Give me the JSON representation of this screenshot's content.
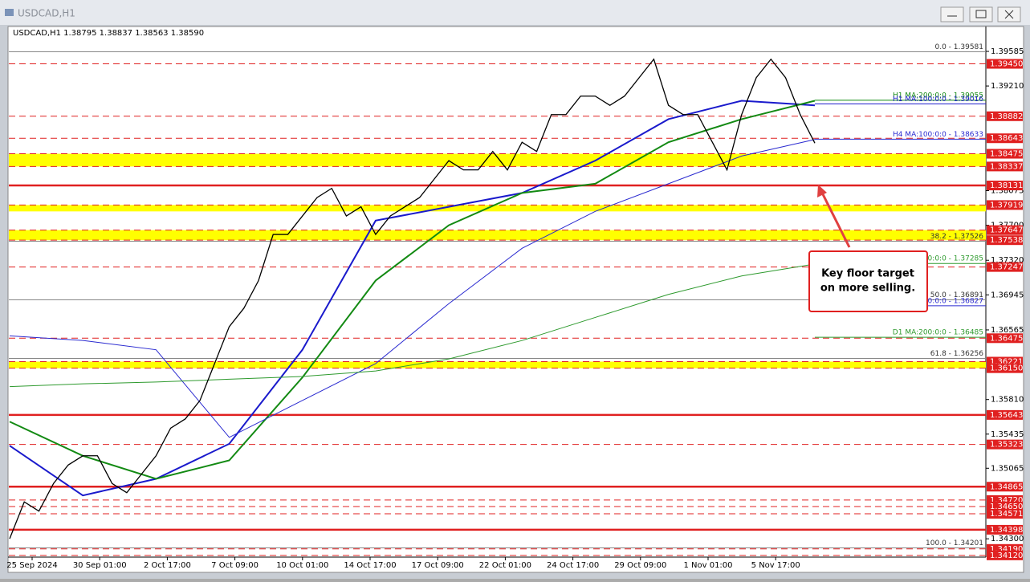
{
  "window": {
    "title": "USDCAD,H1"
  },
  "chart": {
    "info": "USDCAD,H1  1.38795 1.38837 1.38563 1.38590",
    "ylim": [
      1.3411,
      1.39855
    ],
    "yticks": [
      {
        "value": 1.39585,
        "label": "1.39585"
      },
      {
        "value": 1.3921,
        "label": "1.39210"
      },
      {
        "value": 1.38075,
        "label": "1.38075"
      },
      {
        "value": 1.377,
        "label": "1.37700"
      },
      {
        "value": 1.3732,
        "label": "1.37320"
      },
      {
        "value": 1.36945,
        "label": "1.36945"
      },
      {
        "value": 1.36565,
        "label": "1.36565"
      },
      {
        "value": 1.3581,
        "label": "1.35810"
      },
      {
        "value": 1.35435,
        "label": "1.35435"
      },
      {
        "value": 1.35065,
        "label": "1.35065"
      },
      {
        "value": 1.343,
        "label": "1.34300"
      }
    ],
    "xlabels": [
      "25 Sep 2024",
      "30 Sep 01:00",
      "2 Oct 17:00",
      "7 Oct 09:00",
      "10 Oct 01:00",
      "14 Oct 17:00",
      "17 Oct 09:00",
      "22 Oct 01:00",
      "24 Oct 17:00",
      "29 Oct 09:00",
      "1 Nov 01:00",
      "5 Nov 17:00"
    ],
    "price": {
      "color": "#000000",
      "values": [
        1.343,
        1.347,
        1.346,
        1.349,
        1.351,
        1.352,
        1.352,
        1.349,
        1.348,
        1.35,
        1.352,
        1.355,
        1.356,
        1.358,
        1.362,
        1.366,
        1.368,
        1.371,
        1.376,
        1.376,
        1.378,
        1.38,
        1.381,
        1.378,
        1.379,
        1.376,
        1.378,
        1.379,
        1.38,
        1.382,
        1.384,
        1.383,
        1.383,
        1.385,
        1.383,
        1.386,
        1.385,
        1.389,
        1.389,
        1.391,
        1.391,
        1.39,
        1.391,
        1.393,
        1.395,
        1.39,
        1.389,
        1.389,
        1.386,
        1.383,
        1.389,
        1.393,
        1.395,
        1.393,
        1.389,
        1.3859
      ]
    },
    "moving_averages": [
      {
        "color": "#1a1acc",
        "width": 2,
        "values": [
          1.3531,
          1.3477,
          1.3495,
          1.3533,
          1.3635,
          1.3775,
          1.379,
          1.3805,
          1.384,
          1.3885,
          1.3905,
          1.39
        ]
      },
      {
        "color": "#138a13",
        "width": 2,
        "values": [
          1.3557,
          1.352,
          1.3495,
          1.3515,
          1.3605,
          1.371,
          1.377,
          1.3805,
          1.3815,
          1.386,
          1.3885,
          1.3905
        ]
      },
      {
        "color": "#2a2ad0",
        "width": 1,
        "values": [
          1.365,
          1.3645,
          1.3635,
          1.354,
          1.358,
          1.362,
          1.3685,
          1.3745,
          1.3785,
          1.3815,
          1.3845,
          1.3863
        ]
      },
      {
        "color": "#2e9a2e",
        "width": 1,
        "values": [
          1.3595,
          1.3598,
          1.36,
          1.3603,
          1.3606,
          1.3612,
          1.3625,
          1.3645,
          1.367,
          1.3695,
          1.3715,
          1.3728
        ]
      }
    ],
    "zones": [
      [
        1.38475,
        1.38337
      ],
      [
        1.37919,
        1.3785
      ],
      [
        1.37647,
        1.37538
      ],
      [
        1.36221,
        1.3615
      ]
    ],
    "levels": [
      {
        "value": 1.3945,
        "label": "1.39450",
        "solid": false
      },
      {
        "value": 1.38882,
        "label": "1.38882",
        "solid": false
      },
      {
        "value": 1.38643,
        "label": "1.38643",
        "solid": false
      },
      {
        "value": 1.38475,
        "label": "1.38475",
        "solid": false
      },
      {
        "value": 1.38337,
        "label": "1.38337",
        "solid": false
      },
      {
        "value": 1.38131,
        "label": "1.38131",
        "solid": true
      },
      {
        "value": 1.37919,
        "label": "1.37919",
        "solid": false
      },
      {
        "value": 1.37647,
        "label": "1.37647",
        "solid": false
      },
      {
        "value": 1.37538,
        "label": "1.37538",
        "solid": false
      },
      {
        "value": 1.37247,
        "label": "1.37247",
        "solid": false
      },
      {
        "value": 1.36475,
        "label": "1.36475",
        "solid": false
      },
      {
        "value": 1.36221,
        "label": "1.36221",
        "solid": false
      },
      {
        "value": 1.3615,
        "label": "1.36150",
        "solid": false
      },
      {
        "value": 1.35643,
        "label": "1.35643",
        "solid": true
      },
      {
        "value": 1.35323,
        "label": "1.35323",
        "solid": false
      },
      {
        "value": 1.34865,
        "label": "1.34865",
        "solid": true
      },
      {
        "value": 1.3472,
        "label": "1.34720",
        "solid": false
      },
      {
        "value": 1.3465,
        "label": "1.34650",
        "solid": false
      },
      {
        "value": 1.34571,
        "label": "1.34571",
        "solid": false
      },
      {
        "value": 1.34398,
        "label": "1.34398",
        "solid": true
      },
      {
        "value": 1.3419,
        "label": "1.34190",
        "solid": false
      },
      {
        "value": 1.3412,
        "label": "1.34120",
        "solid": false
      }
    ],
    "fib": [
      {
        "value": 1.39581,
        "label": "0.0 - 1.39581"
      },
      {
        "value": 1.37526,
        "label": "38.2 - 1.37526"
      },
      {
        "value": 1.36891,
        "label": "50.0 - 1.36891"
      },
      {
        "value": 1.36256,
        "label": "61.8 - 1.36256"
      },
      {
        "value": 1.34201,
        "label": "100.0 - 1.34201"
      }
    ],
    "ma_labels": [
      {
        "value": 1.39055,
        "label": "H1 MA:200:0:0 - 1.39055",
        "color": "#138a13"
      },
      {
        "value": 1.39016,
        "label": "H1 MA:100:0:0 - 1.39016",
        "color": "#1a1acc"
      },
      {
        "value": 1.38633,
        "label": "H4 MA:100:0:0 - 1.38633",
        "color": "#2a2ad0"
      },
      {
        "value": 1.37285,
        "label": "200:0:0 - 1.37285",
        "color": "#2e9a2e"
      },
      {
        "value": 1.36827,
        "label": "100:0:0 - 1.36827",
        "color": "#2a2ad0"
      },
      {
        "value": 1.36485,
        "label": "D1 MA:200:0:0 - 1.36485",
        "color": "#2e9a2e"
      }
    ],
    "annotation": {
      "line1": "Key floor target",
      "line2": "on more selling."
    }
  }
}
